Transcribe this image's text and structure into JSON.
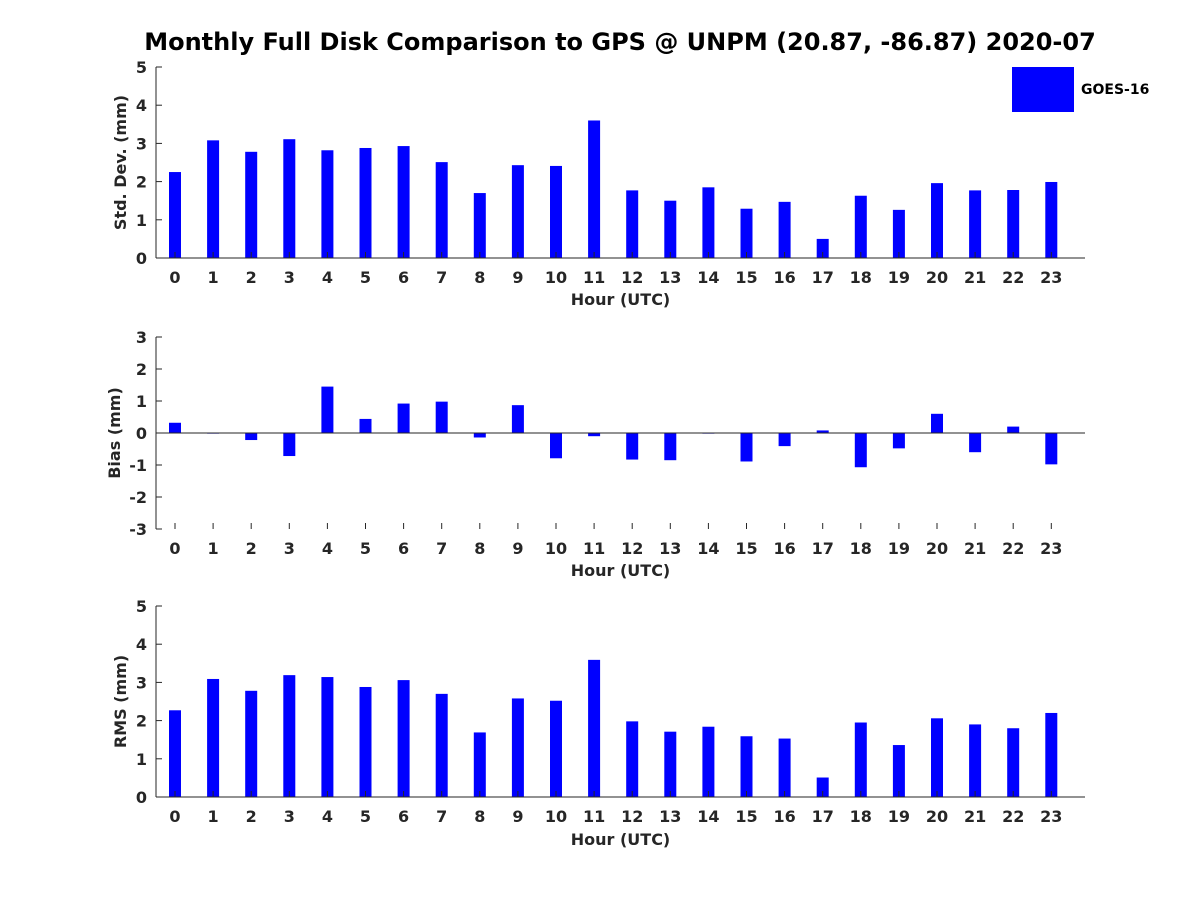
{
  "figure": {
    "title": "Monthly Full Disk Comparison to GPS @ UNPM (20.87, -86.87) 2020-07",
    "bar_color": "#0000ff",
    "legend": {
      "label": "GOES-16",
      "placement": "top-right"
    }
  },
  "chart_data": [
    {
      "type": "bar",
      "title": "",
      "xlabel": "Hour (UTC)",
      "ylabel": "Std. Dev. (mm)",
      "ylim": [
        0,
        5
      ],
      "yticks": [
        "0",
        "1",
        "2",
        "3",
        "4",
        "5"
      ],
      "categories": [
        "0",
        "1",
        "2",
        "3",
        "4",
        "5",
        "6",
        "7",
        "8",
        "9",
        "10",
        "11",
        "12",
        "13",
        "14",
        "15",
        "16",
        "17",
        "18",
        "19",
        "20",
        "21",
        "22",
        "23"
      ],
      "series": [
        {
          "name": "GOES-16",
          "values": [
            2.25,
            3.08,
            2.78,
            3.11,
            2.82,
            2.88,
            2.93,
            2.51,
            1.7,
            2.43,
            2.41,
            3.6,
            1.77,
            1.5,
            1.85,
            1.29,
            1.47,
            0.5,
            1.63,
            1.26,
            1.96,
            1.77,
            1.78,
            1.99
          ]
        }
      ],
      "grid": false
    },
    {
      "type": "bar",
      "title": "",
      "xlabel": "Hour (UTC)",
      "ylabel": "Bias (mm)",
      "ylim": [
        -3,
        3
      ],
      "yticks": [
        "-3",
        "-2",
        "-1",
        "0",
        "1",
        "2",
        "3"
      ],
      "categories": [
        "0",
        "1",
        "2",
        "3",
        "4",
        "5",
        "6",
        "7",
        "8",
        "9",
        "10",
        "11",
        "12",
        "13",
        "14",
        "15",
        "16",
        "17",
        "18",
        "19",
        "20",
        "21",
        "22",
        "23"
      ],
      "series": [
        {
          "name": "GOES-16",
          "values": [
            0.32,
            -0.02,
            -0.22,
            -0.72,
            1.45,
            0.44,
            0.92,
            0.98,
            -0.14,
            0.87,
            -0.79,
            -0.1,
            -0.83,
            -0.85,
            -0.02,
            -0.89,
            -0.41,
            0.08,
            -1.07,
            -0.48,
            0.6,
            -0.6,
            0.2,
            -0.98
          ]
        }
      ],
      "grid": false
    },
    {
      "type": "bar",
      "title": "",
      "xlabel": "Hour (UTC)",
      "ylabel": "RMS (mm)",
      "ylim": [
        0,
        5
      ],
      "yticks": [
        "0",
        "1",
        "2",
        "3",
        "4",
        "5"
      ],
      "categories": [
        "0",
        "1",
        "2",
        "3",
        "4",
        "5",
        "6",
        "7",
        "8",
        "9",
        "10",
        "11",
        "12",
        "13",
        "14",
        "15",
        "16",
        "17",
        "18",
        "19",
        "20",
        "21",
        "22",
        "23"
      ],
      "series": [
        {
          "name": "GOES-16",
          "values": [
            2.27,
            3.09,
            2.78,
            3.19,
            3.14,
            2.88,
            3.06,
            2.7,
            1.69,
            2.58,
            2.52,
            3.59,
            1.98,
            1.71,
            1.84,
            1.59,
            1.53,
            0.51,
            1.95,
            1.36,
            2.06,
            1.9,
            1.8,
            2.2
          ]
        }
      ],
      "grid": false
    }
  ]
}
